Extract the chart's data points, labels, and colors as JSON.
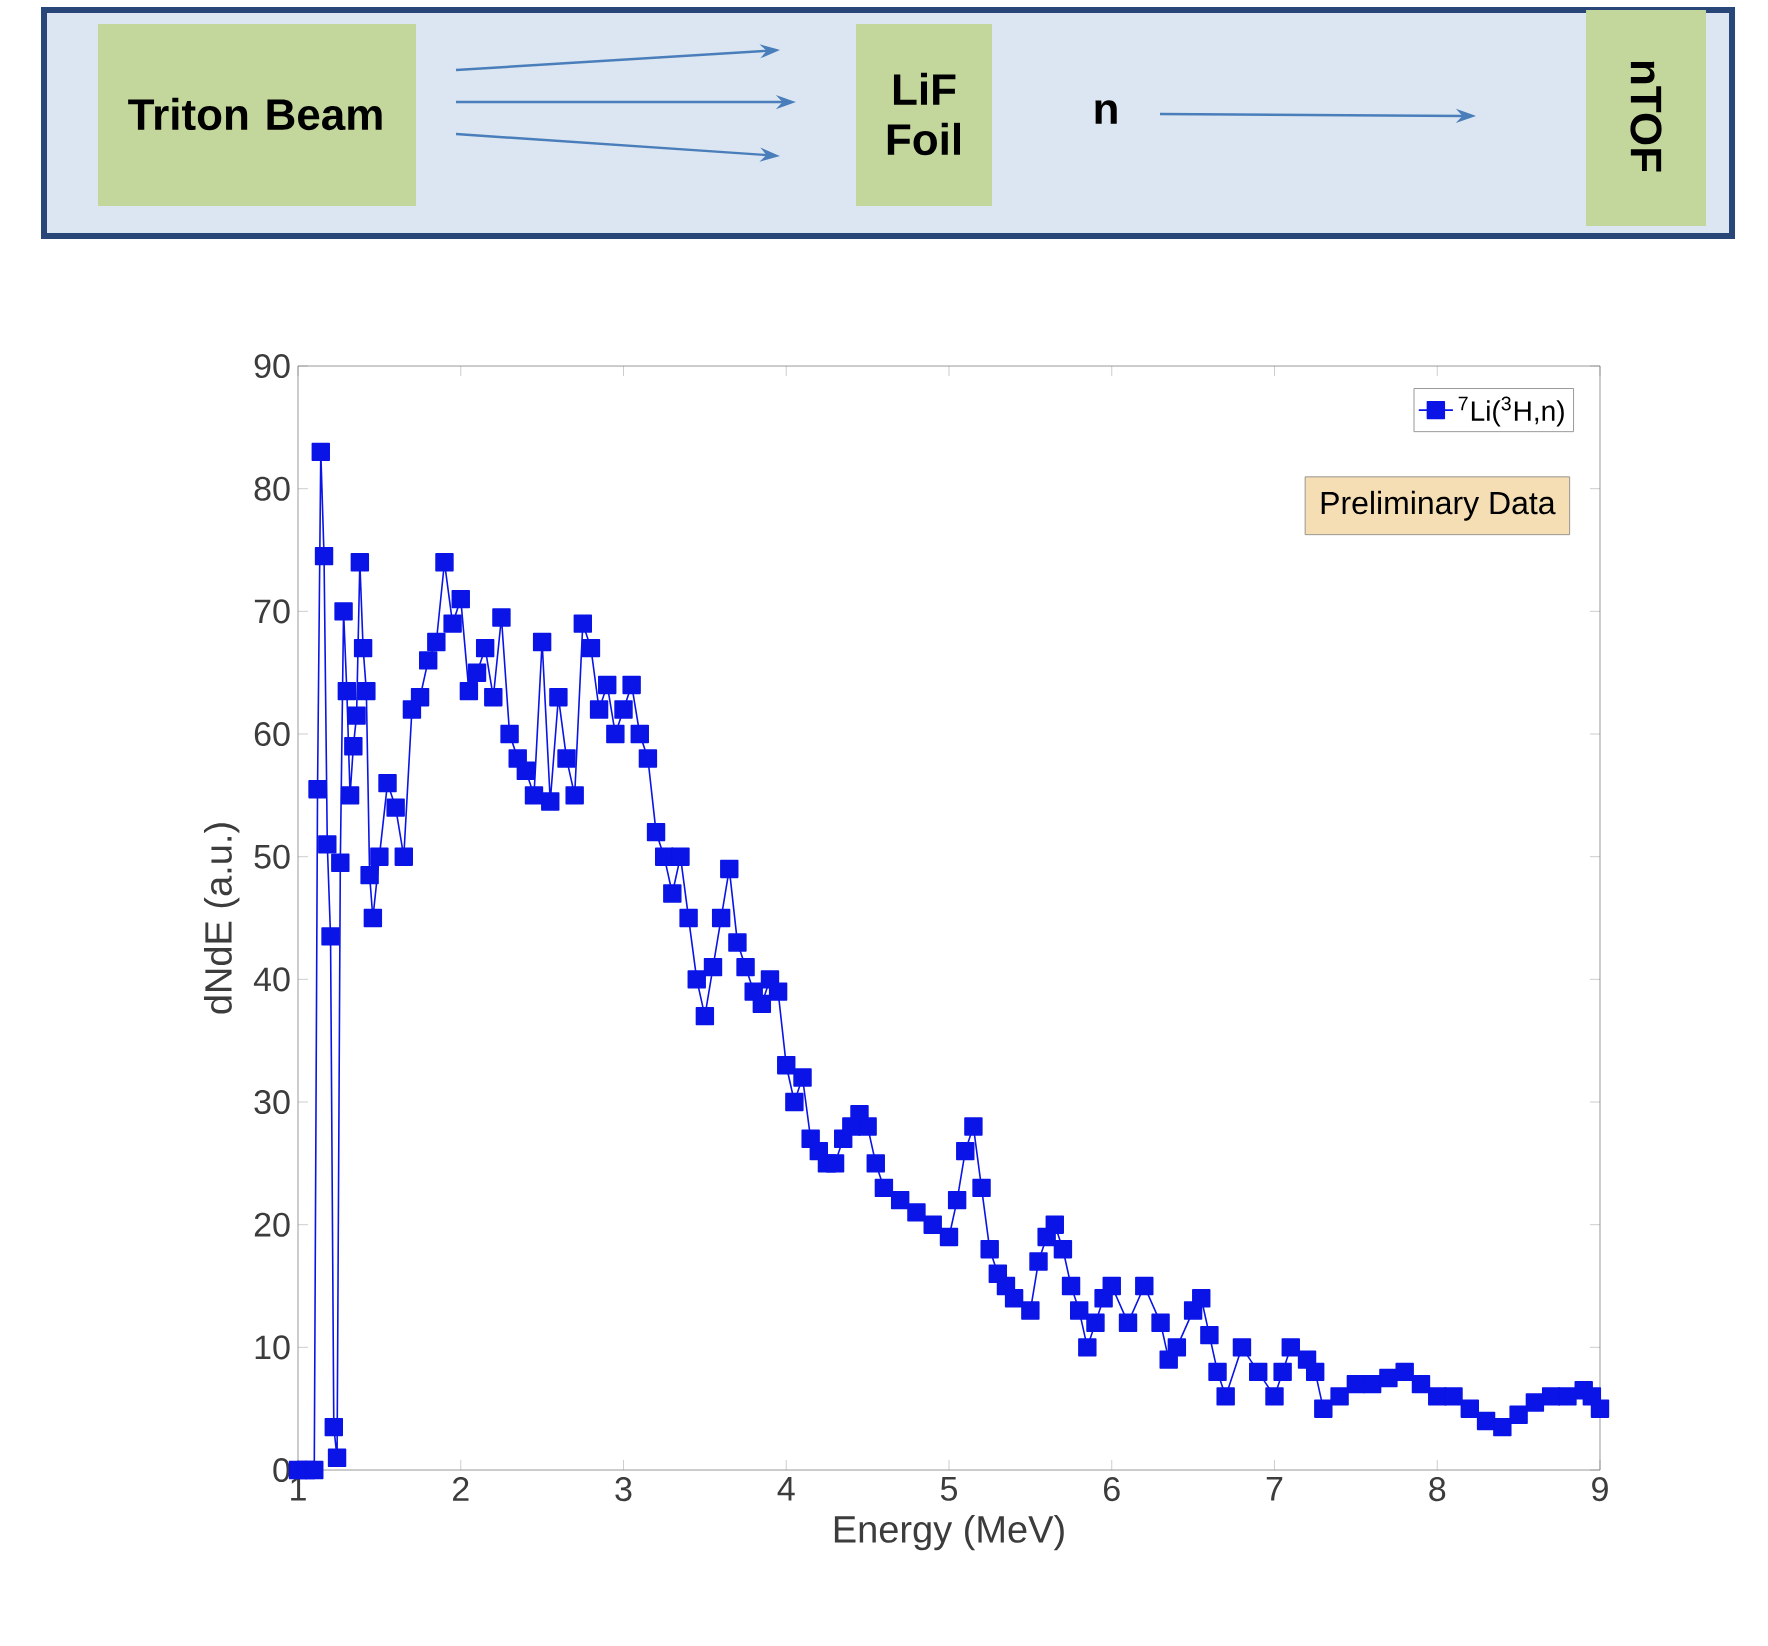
{
  "chart_data": {
    "type": "line",
    "xlabel": "Energy (MeV)",
    "ylabel": "dNdE (a.u.)",
    "annotations": [
      "Triton Beam",
      "LiF Foil",
      "n",
      "nTOF",
      "Preliminary Data"
    ],
    "xlim": [
      1,
      9
    ],
    "xticks": [
      1,
      2,
      3,
      4,
      5,
      6,
      7,
      8,
      9
    ],
    "ylim": [
      0,
      90
    ],
    "yticks": [
      0,
      10,
      20,
      30,
      40,
      50,
      60,
      70,
      80,
      90
    ],
    "marker": "square",
    "legend": "top right",
    "series": [
      {
        "name": "$^{7}$Li($^{3}$H,n)",
        "color": "#0a14e6",
        "x": [
          1.0,
          1.05,
          1.1,
          1.12,
          1.14,
          1.16,
          1.18,
          1.2,
          1.22,
          1.24,
          1.26,
          1.28,
          1.3,
          1.32,
          1.34,
          1.36,
          1.38,
          1.4,
          1.42,
          1.44,
          1.46,
          1.5,
          1.55,
          1.6,
          1.65,
          1.7,
          1.75,
          1.8,
          1.85,
          1.9,
          1.95,
          2.0,
          2.05,
          2.1,
          2.15,
          2.2,
          2.25,
          2.3,
          2.35,
          2.4,
          2.45,
          2.5,
          2.55,
          2.6,
          2.65,
          2.7,
          2.75,
          2.8,
          2.85,
          2.9,
          2.95,
          3.0,
          3.05,
          3.1,
          3.15,
          3.2,
          3.25,
          3.3,
          3.35,
          3.4,
          3.45,
          3.5,
          3.55,
          3.6,
          3.65,
          3.7,
          3.75,
          3.8,
          3.85,
          3.9,
          3.95,
          4.0,
          4.05,
          4.1,
          4.15,
          4.2,
          4.25,
          4.3,
          4.35,
          4.4,
          4.45,
          4.5,
          4.55,
          4.6,
          4.7,
          4.8,
          4.9,
          5.0,
          5.05,
          5.1,
          5.15,
          5.2,
          5.25,
          5.3,
          5.35,
          5.4,
          5.5,
          5.55,
          5.6,
          5.65,
          5.7,
          5.75,
          5.8,
          5.85,
          5.9,
          5.95,
          6.0,
          6.1,
          6.2,
          6.3,
          6.35,
          6.4,
          6.5,
          6.55,
          6.6,
          6.65,
          6.7,
          6.8,
          6.9,
          7.0,
          7.05,
          7.1,
          7.2,
          7.25,
          7.3,
          7.4,
          7.5,
          7.6,
          7.7,
          7.8,
          7.9,
          8.0,
          8.1,
          8.2,
          8.3,
          8.4,
          8.5,
          8.6,
          8.7,
          8.8,
          8.9,
          8.95,
          9.0
        ],
        "values": [
          0,
          0,
          0,
          55.5,
          83,
          74.5,
          51,
          43.5,
          3.5,
          1,
          49.5,
          70,
          63.5,
          55,
          59,
          61.5,
          74,
          67,
          63.5,
          48.5,
          45,
          50,
          56,
          54,
          50,
          62,
          63,
          66,
          67.5,
          74,
          69,
          71,
          63.5,
          65,
          67,
          63,
          69.5,
          60,
          58,
          57,
          55,
          67.5,
          54.5,
          63,
          58,
          55,
          69,
          67,
          62,
          64,
          60,
          62,
          64,
          60,
          58,
          52,
          50,
          47,
          50,
          45,
          40,
          37,
          41,
          45,
          49,
          43,
          41,
          39,
          38,
          40,
          39,
          33,
          30,
          32,
          27,
          26,
          25,
          25,
          27,
          28,
          29,
          28,
          25,
          23,
          22,
          21,
          20,
          19,
          22,
          26,
          28,
          23,
          18,
          16,
          15,
          14,
          13,
          17,
          19,
          20,
          18,
          15,
          13,
          10,
          12,
          14,
          15,
          12,
          15,
          12,
          9,
          10,
          13,
          14,
          11,
          8,
          6,
          10,
          8,
          6,
          8,
          10,
          9,
          8,
          5,
          6,
          7,
          7,
          7.5,
          8,
          7,
          6,
          6,
          5,
          4,
          3.5,
          4.5,
          5.5,
          6,
          6,
          6.5,
          6,
          5
        ]
      }
    ]
  }
}
